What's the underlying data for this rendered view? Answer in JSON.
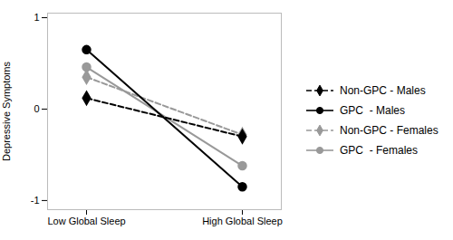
{
  "chart_data": {
    "type": "line",
    "categories": [
      "Low Global Sleep",
      "High Global Sleep"
    ],
    "series": [
      {
        "name": "Non-GPC - Males",
        "color": "#000000",
        "values": [
          0.12,
          -0.3
        ],
        "line_style": "dashed",
        "marker": "diamond"
      },
      {
        "name": "GPC  - Males",
        "color": "#000000",
        "values": [
          0.65,
          -0.85
        ],
        "line_style": "solid",
        "marker": "circle"
      },
      {
        "name": "Non-GPC - Females",
        "color": "#999999",
        "values": [
          0.35,
          -0.28
        ],
        "line_style": "dashed",
        "marker": "diamond"
      },
      {
        "name": "GPC  - Females",
        "color": "#999999",
        "values": [
          0.46,
          -0.62
        ],
        "line_style": "solid",
        "marker": "circle"
      }
    ],
    "ylabel": "Depressive Symptoms",
    "ylim": [
      -1.1,
      1.05
    ],
    "yticks": [
      -1,
      0,
      1
    ],
    "grid": false,
    "legend": "right"
  }
}
